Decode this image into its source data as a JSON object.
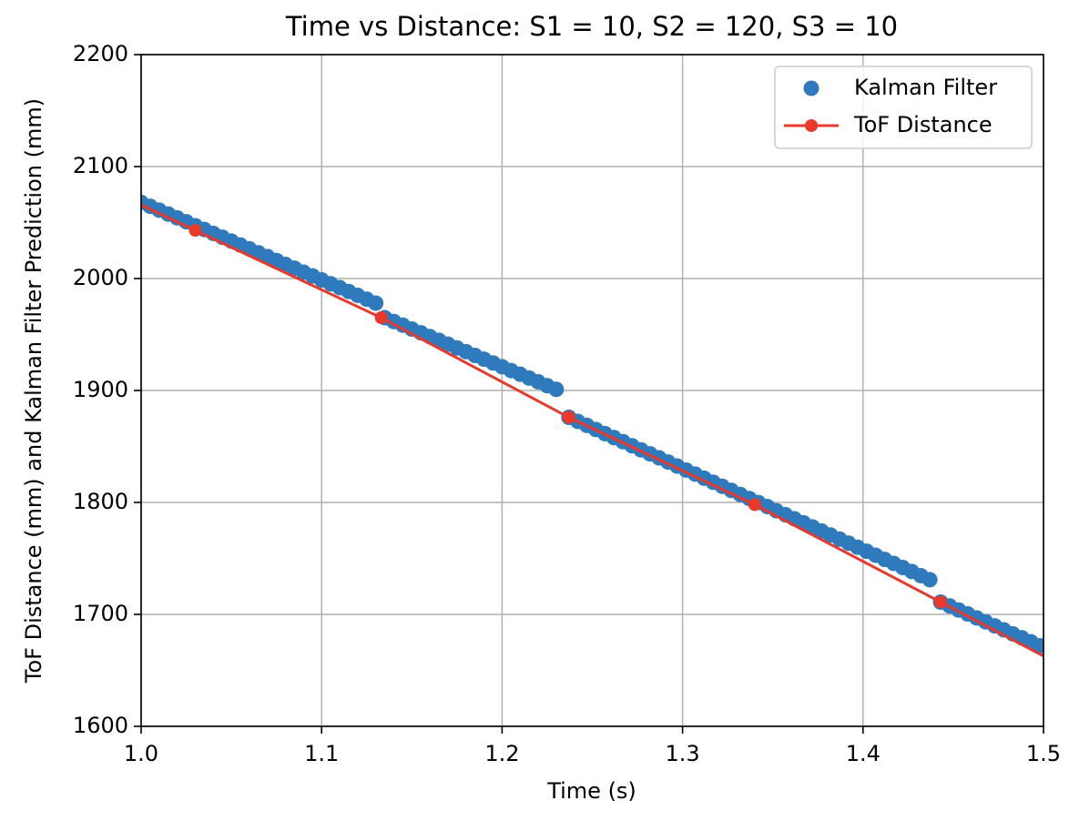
{
  "chart_data": {
    "type": "scatter",
    "title": "Time vs Distance: S1 = 10, S2 = 120, S3 = 10",
    "x_label": "Time (s)",
    "y_label": "ToF Distance (mm) and Kalman Filter Prediction (mm)",
    "xlim": [
      1.0,
      1.5
    ],
    "xticks": [
      {
        "value": 1.0,
        "label": "1.0"
      },
      1.1,
      1.2,
      1.3,
      1.4,
      1.5
    ],
    "ylim": [
      1600,
      2200
    ],
    "yticks": [
      1600,
      1700,
      1800,
      1900,
      2000,
      2100,
      2200
    ],
    "grid": true,
    "legend": "upper right",
    "series": [
      {
        "name": "Kalman Filter",
        "type": "scatter",
        "color": "#2f7abd",
        "x": [
          1.0,
          1.005,
          1.01,
          1.015,
          1.02,
          1.025,
          1.03,
          1.035,
          1.04,
          1.045,
          1.05,
          1.055,
          1.06,
          1.065,
          1.07,
          1.075,
          1.08,
          1.085,
          1.09,
          1.095,
          1.1,
          1.105,
          1.11,
          1.115,
          1.12,
          1.125,
          1.13,
          1.135,
          1.14,
          1.145,
          1.15,
          1.155,
          1.16,
          1.165,
          1.17,
          1.175,
          1.18,
          1.185,
          1.19,
          1.195,
          1.2,
          1.205,
          1.21,
          1.215,
          1.22,
          1.225,
          1.23,
          1.237,
          1.242,
          1.247,
          1.252,
          1.257,
          1.262,
          1.267,
          1.272,
          1.277,
          1.282,
          1.287,
          1.292,
          1.297,
          1.302,
          1.307,
          1.312,
          1.317,
          1.322,
          1.327,
          1.332,
          1.337,
          1.342,
          1.347,
          1.352,
          1.357,
          1.362,
          1.367,
          1.372,
          1.377,
          1.382,
          1.387,
          1.392,
          1.397,
          1.402,
          1.407,
          1.412,
          1.417,
          1.422,
          1.427,
          1.432,
          1.437,
          1.443,
          1.448,
          1.453,
          1.458,
          1.463,
          1.468,
          1.473,
          1.478,
          1.483,
          1.488,
          1.493,
          1.498
        ],
        "values": [
          2068.0,
          2064.5,
          2061.1,
          2057.6,
          2054.2,
          2050.7,
          2047.2,
          2043.8,
          2040.3,
          2036.9,
          2033.4,
          2029.9,
          2026.5,
          2023.0,
          2019.6,
          2016.1,
          2012.6,
          2009.2,
          2005.7,
          2002.3,
          1998.8,
          1995.3,
          1991.9,
          1988.4,
          1985.0,
          1981.5,
          1978.0,
          1965.0,
          1961.6,
          1958.3,
          1954.9,
          1951.5,
          1948.2,
          1944.8,
          1941.4,
          1938.0,
          1934.7,
          1931.3,
          1927.9,
          1924.6,
          1921.2,
          1917.8,
          1914.5,
          1911.1,
          1907.7,
          1904.3,
          1901.0,
          1876.0,
          1872.4,
          1868.8,
          1865.1,
          1861.5,
          1857.9,
          1854.3,
          1850.6,
          1847.0,
          1843.4,
          1839.8,
          1836.1,
          1832.5,
          1828.9,
          1825.3,
          1821.6,
          1818.0,
          1814.4,
          1810.8,
          1807.1,
          1803.5,
          1799.9,
          1796.3,
          1792.6,
          1789.0,
          1785.4,
          1781.8,
          1778.1,
          1774.5,
          1770.9,
          1767.3,
          1763.6,
          1760.0,
          1756.4,
          1752.8,
          1749.1,
          1745.5,
          1741.9,
          1738.3,
          1734.6,
          1731.0,
          1711.0,
          1707.5,
          1703.9,
          1700.4,
          1696.8,
          1693.3,
          1689.7,
          1686.2,
          1682.6,
          1679.1,
          1675.5,
          1672.0
        ]
      },
      {
        "name": "ToF Distance",
        "type": "line",
        "color": "#e8392b",
        "x": [
          0.927,
          1.03,
          1.133,
          1.237,
          1.34,
          1.443,
          1.546
        ],
        "values": [
          2121,
          2043,
          1965,
          1876,
          1798,
          1711,
          1624
        ]
      }
    ]
  }
}
